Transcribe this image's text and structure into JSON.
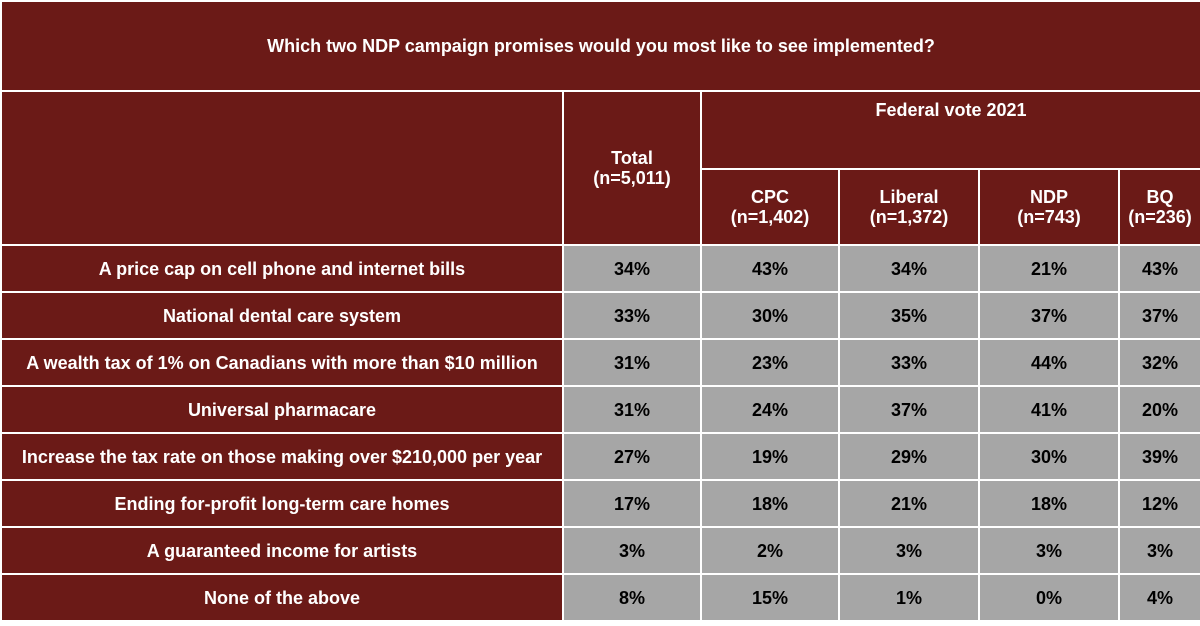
{
  "title": "Which two NDP campaign promises would you most like to see implemented?",
  "table": {
    "group_header": "Federal vote 2021",
    "columns": [
      {
        "name": "Total",
        "n": "(n=5,011)"
      },
      {
        "name": "CPC",
        "n": "(n=1,402)"
      },
      {
        "name": "Liberal",
        "n": "(n=1,372)"
      },
      {
        "name": "NDP",
        "n": "(n=743)"
      },
      {
        "name": "BQ",
        "n": "(n=236)"
      }
    ],
    "rows": [
      {
        "label": "A price cap on cell phone and internet bills",
        "values": [
          "34%",
          "43%",
          "34%",
          "21%",
          "43%"
        ]
      },
      {
        "label": "National dental care system",
        "values": [
          "33%",
          "30%",
          "35%",
          "37%",
          "37%"
        ]
      },
      {
        "label": "A wealth tax of 1% on Canadians with more than $10 million",
        "values": [
          "31%",
          "23%",
          "33%",
          "44%",
          "32%"
        ]
      },
      {
        "label": "Universal pharmacare",
        "values": [
          "31%",
          "24%",
          "37%",
          "41%",
          "20%"
        ]
      },
      {
        "label": "Increase the tax rate on those making over $210,000 per year",
        "values": [
          "27%",
          "19%",
          "29%",
          "30%",
          "39%"
        ]
      },
      {
        "label": "Ending for-profit long-term care homes",
        "values": [
          "17%",
          "18%",
          "21%",
          "18%",
          "12%"
        ]
      },
      {
        "label": "A guaranteed income for artists",
        "values": [
          "3%",
          "2%",
          "3%",
          "3%",
          "3%"
        ]
      },
      {
        "label": "None of the above",
        "values": [
          "8%",
          "15%",
          "1%",
          "0%",
          "4%"
        ]
      }
    ]
  }
}
